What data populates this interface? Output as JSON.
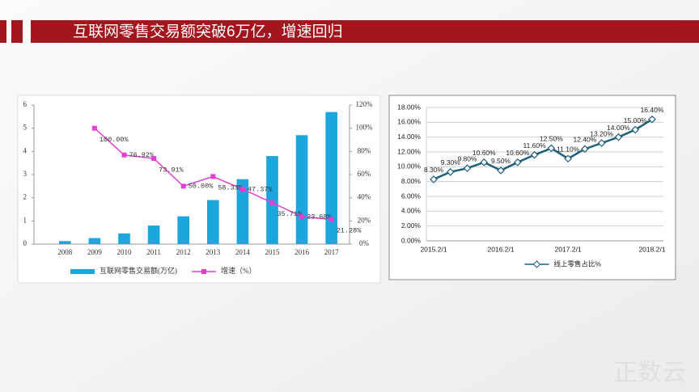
{
  "title": "互联网零售交易额突破6万亿，增速回归",
  "watermark": "正数云",
  "chart_data": [
    {
      "type": "bar",
      "categories": [
        "2008",
        "2009",
        "2010",
        "2011",
        "2012",
        "2013",
        "2014",
        "2015",
        "2016",
        "2017"
      ],
      "series": [
        {
          "name": "互联网零售交易额(万亿)",
          "color": "#1ba6de",
          "values": [
            0.13,
            0.26,
            0.46,
            0.8,
            1.2,
            1.9,
            2.8,
            3.8,
            4.7,
            5.7
          ]
        },
        {
          "name": "增速（%）",
          "type": "line",
          "axis": "y2",
          "color": "#e43fd0",
          "values": [
            null,
            100,
            76.92,
            73.91,
            50,
            58.33,
            47.37,
            35.71,
            23.68,
            21.28
          ],
          "value_labels": [
            null,
            "100.00%",
            "76.92%",
            "73.91%",
            "50.00%",
            "58.33%",
            "47.37%",
            "35.71%",
            "23.68%",
            "21.28%"
          ]
        }
      ],
      "ylim": [
        0,
        6
      ],
      "yticks": [
        0,
        1,
        2,
        3,
        4,
        5,
        6
      ],
      "y2lim": [
        0,
        120
      ],
      "y2ticks": [
        {
          "value": 0,
          "label": "0%"
        },
        {
          "value": 20,
          "label": "20%"
        },
        {
          "value": 40,
          "label": "40%"
        },
        {
          "value": 60,
          "label": "60%"
        },
        {
          "value": 80,
          "label": "80%"
        },
        {
          "value": 100,
          "label": "100%"
        },
        {
          "value": 120,
          "label": "120%"
        }
      ],
      "grid": false,
      "legend": "bottom"
    },
    {
      "type": "line",
      "categories": [
        "2015.2/1",
        null,
        null,
        null,
        "2016.2/1",
        null,
        null,
        null,
        "2017.2/1",
        null,
        null,
        null,
        null,
        "2018.2/1"
      ],
      "series": [
        {
          "name": "线上零售占比%",
          "color": "#1d5f7c",
          "values": [
            8.3,
            9.3,
            9.8,
            10.6,
            9.5,
            10.6,
            11.6,
            12.5,
            11.1,
            12.4,
            13.2,
            14,
            15,
            16.4
          ],
          "value_labels": [
            "8.30%",
            "9.30%",
            "9.80%",
            "10.60%",
            "9.50%",
            "10.60%",
            "11.60%",
            "12.50%",
            "11.10%",
            "12.40%",
            "13.20%",
            "14.00%",
            "15.00%",
            "16.40%"
          ]
        }
      ],
      "ylim": [
        0,
        18
      ],
      "yticks": [
        {
          "value": 0,
          "label": "0.00%"
        },
        {
          "value": 2,
          "label": "2.00%"
        },
        {
          "value": 4,
          "label": "4.00%"
        },
        {
          "value": 6,
          "label": "6.00%"
        },
        {
          "value": 8,
          "label": "8.00%"
        },
        {
          "value": 10,
          "label": "10.00%"
        },
        {
          "value": 12,
          "label": "12.00%"
        },
        {
          "value": 14,
          "label": "14.00%"
        },
        {
          "value": 16,
          "label": "16.00%"
        },
        {
          "value": 18,
          "label": "18.00%"
        }
      ],
      "grid": true,
      "legend": "bottom"
    }
  ]
}
